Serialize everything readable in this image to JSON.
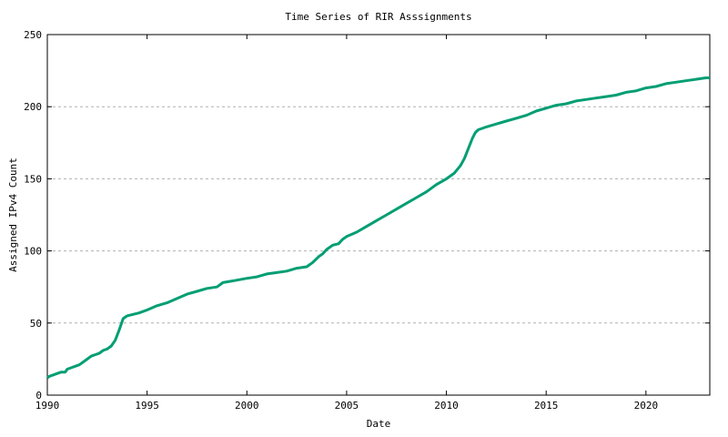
{
  "figure": {
    "background": "#ffffff",
    "border_color": "#000000",
    "grid_color": "#b0b0b0",
    "text_color": "#000000"
  },
  "chart_data": {
    "type": "line",
    "title": "Time Series of RIR Asssignments",
    "xlabel": "Date",
    "ylabel": "Assigned IPv4 Count",
    "xlim": [
      1990,
      2023.2
    ],
    "ylim": [
      0,
      250
    ],
    "xticks": [
      1990,
      1995,
      2000,
      2005,
      2010,
      2015,
      2020
    ],
    "yticks": [
      0,
      50,
      100,
      150,
      200,
      250
    ],
    "grid_y": [
      50,
      100,
      150,
      200
    ],
    "grid_style": "dashed-horizontal",
    "legend_position": "none",
    "line_color": "#009e73",
    "line_width": 3,
    "series": [
      {
        "name": "Assigned IPv4 Count",
        "points": [
          [
            1990.0,
            12
          ],
          [
            1990.1,
            13
          ],
          [
            1990.3,
            14
          ],
          [
            1990.5,
            15
          ],
          [
            1990.7,
            16
          ],
          [
            1990.9,
            16
          ],
          [
            1991.0,
            18
          ],
          [
            1991.2,
            19
          ],
          [
            1991.4,
            20
          ],
          [
            1991.6,
            21
          ],
          [
            1991.8,
            23
          ],
          [
            1992.0,
            25
          ],
          [
            1992.2,
            27
          ],
          [
            1992.4,
            28
          ],
          [
            1992.6,
            29
          ],
          [
            1992.8,
            31
          ],
          [
            1993.0,
            32
          ],
          [
            1993.2,
            34
          ],
          [
            1993.4,
            38
          ],
          [
            1993.6,
            45
          ],
          [
            1993.8,
            53
          ],
          [
            1994.0,
            55
          ],
          [
            1994.3,
            56
          ],
          [
            1994.6,
            57
          ],
          [
            1995.0,
            59
          ],
          [
            1995.5,
            62
          ],
          [
            1996.0,
            64
          ],
          [
            1996.5,
            67
          ],
          [
            1997.0,
            70
          ],
          [
            1997.5,
            72
          ],
          [
            1998.0,
            74
          ],
          [
            1998.5,
            75
          ],
          [
            1998.8,
            78
          ],
          [
            1999.2,
            79
          ],
          [
            1999.6,
            80
          ],
          [
            2000.0,
            81
          ],
          [
            2000.5,
            82
          ],
          [
            2001.0,
            84
          ],
          [
            2001.5,
            85
          ],
          [
            2002.0,
            86
          ],
          [
            2002.5,
            88
          ],
          [
            2003.0,
            89
          ],
          [
            2003.3,
            92
          ],
          [
            2003.6,
            96
          ],
          [
            2003.8,
            98
          ],
          [
            2004.0,
            101
          ],
          [
            2004.3,
            104
          ],
          [
            2004.6,
            105
          ],
          [
            2004.8,
            108
          ],
          [
            2005.0,
            110
          ],
          [
            2005.5,
            113
          ],
          [
            2006.0,
            117
          ],
          [
            2006.5,
            121
          ],
          [
            2007.0,
            125
          ],
          [
            2007.5,
            129
          ],
          [
            2008.0,
            133
          ],
          [
            2008.5,
            137
          ],
          [
            2009.0,
            141
          ],
          [
            2009.5,
            146
          ],
          [
            2010.0,
            150
          ],
          [
            2010.4,
            154
          ],
          [
            2010.7,
            159
          ],
          [
            2010.9,
            164
          ],
          [
            2011.1,
            171
          ],
          [
            2011.3,
            178
          ],
          [
            2011.45,
            182
          ],
          [
            2011.6,
            184
          ],
          [
            2011.8,
            185
          ],
          [
            2012.0,
            186
          ],
          [
            2012.5,
            188
          ],
          [
            2013.0,
            190
          ],
          [
            2013.5,
            192
          ],
          [
            2014.0,
            194
          ],
          [
            2014.5,
            197
          ],
          [
            2015.0,
            199
          ],
          [
            2015.5,
            201
          ],
          [
            2016.0,
            202
          ],
          [
            2016.5,
            204
          ],
          [
            2017.0,
            205
          ],
          [
            2017.5,
            206
          ],
          [
            2018.0,
            207
          ],
          [
            2018.5,
            208
          ],
          [
            2019.0,
            210
          ],
          [
            2019.5,
            211
          ],
          [
            2020.0,
            213
          ],
          [
            2020.5,
            214
          ],
          [
            2021.0,
            216
          ],
          [
            2021.5,
            217
          ],
          [
            2022.0,
            218
          ],
          [
            2022.5,
            219
          ],
          [
            2023.0,
            220
          ],
          [
            2023.2,
            220
          ]
        ]
      }
    ]
  }
}
